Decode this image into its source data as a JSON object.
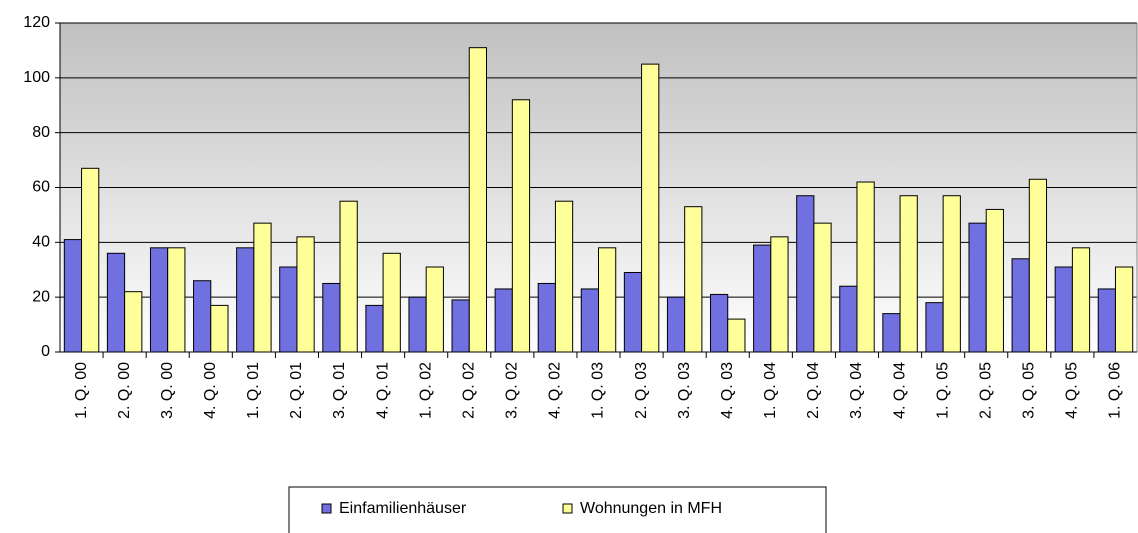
{
  "chart_data": {
    "type": "bar",
    "categories": [
      "1. Q. 00",
      "2. Q. 00",
      "3. Q. 00",
      "4. Q. 00",
      "1. Q. 01",
      "2. Q. 01",
      "3. Q. 01",
      "4. Q. 01",
      "1. Q. 02",
      "2. Q. 02",
      "3. Q. 02",
      "4. Q. 02",
      "1. Q. 03",
      "2. Q. 03",
      "3. Q. 03",
      "4. Q. 03",
      "1. Q. 04",
      "2. Q. 04",
      "3. Q. 04",
      "4. Q. 04",
      "1. Q. 05",
      "2. Q. 05",
      "3. Q. 05",
      "4. Q. 05",
      "1. Q. 06"
    ],
    "series": [
      {
        "name": "Einfamilienhäuser",
        "color": "#7070e0",
        "values": [
          41,
          36,
          38,
          26,
          38,
          31,
          25,
          17,
          20,
          19,
          23,
          25,
          23,
          29,
          20,
          21,
          39,
          57,
          24,
          14,
          18,
          47,
          34,
          31,
          23
        ]
      },
      {
        "name": "Wohnungen in MFH",
        "color": "#ffff99",
        "values": [
          67,
          22,
          38,
          17,
          47,
          42,
          55,
          36,
          31,
          111,
          92,
          55,
          38,
          105,
          53,
          12,
          42,
          47,
          62,
          57,
          57,
          52,
          63,
          38,
          31
        ]
      }
    ],
    "ylim": [
      0,
      120
    ],
    "yticks": [
      0,
      20,
      40,
      60,
      80,
      100,
      120
    ],
    "grid": true,
    "legend": "bottom"
  }
}
